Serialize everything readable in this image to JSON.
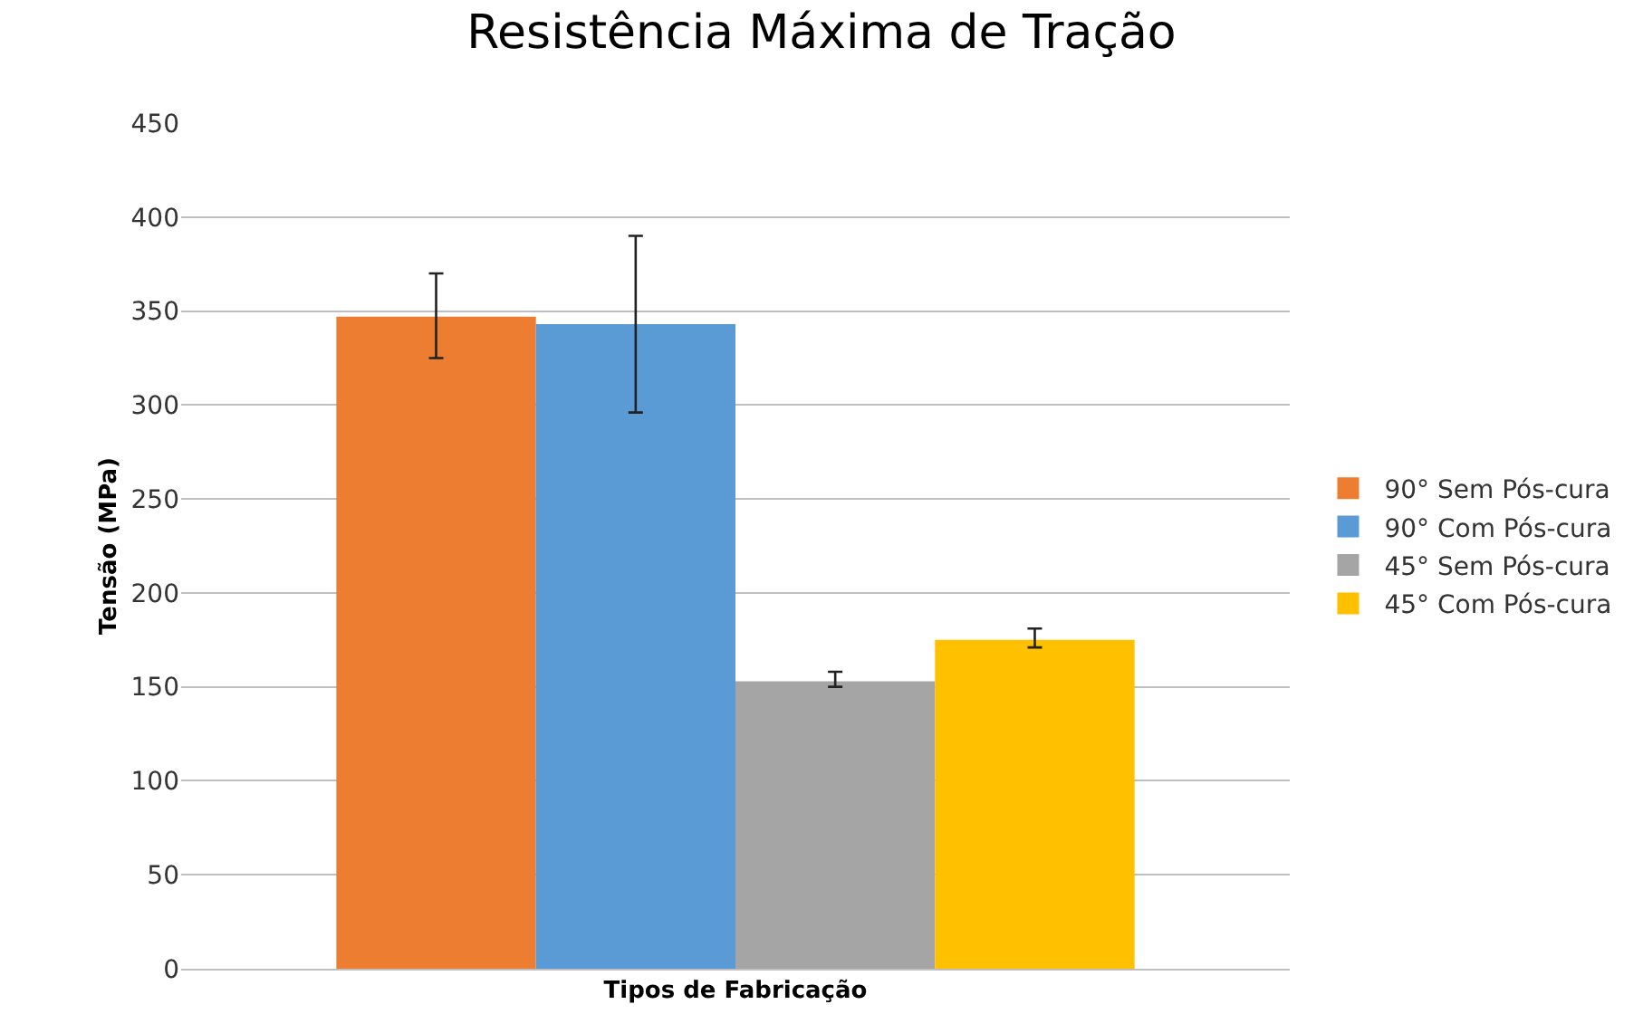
{
  "chart_data": {
    "type": "bar",
    "title": "Resistência Máxima de Tração",
    "xlabel": "Tipos de Fabricação",
    "ylabel": "Tensão (MPa)",
    "categories": [
      null
    ],
    "series": [
      {
        "name": "90° Sem Pós-cura",
        "color": "#ed7d31",
        "values": [
          347
        ],
        "errors": [
          [
            325,
            370
          ]
        ]
      },
      {
        "name": "90° Com Pós-cura",
        "color": "#5b9bd5",
        "values": [
          343
        ],
        "errors": [
          [
            296,
            390
          ]
        ]
      },
      {
        "name": "45° Sem Pós-cura",
        "color": "#a5a5a5",
        "values": [
          153
        ],
        "errors": [
          [
            150,
            158
          ]
        ]
      },
      {
        "name": "45° Com Pós-cura",
        "color": "#ffc000",
        "values": [
          175
        ],
        "errors": [
          [
            171,
            181
          ]
        ]
      }
    ],
    "ylim": [
      0,
      450
    ],
    "yticks": [
      0,
      50,
      100,
      150,
      200,
      250,
      300,
      350,
      400,
      450
    ],
    "grid": "y",
    "legend": "right"
  }
}
